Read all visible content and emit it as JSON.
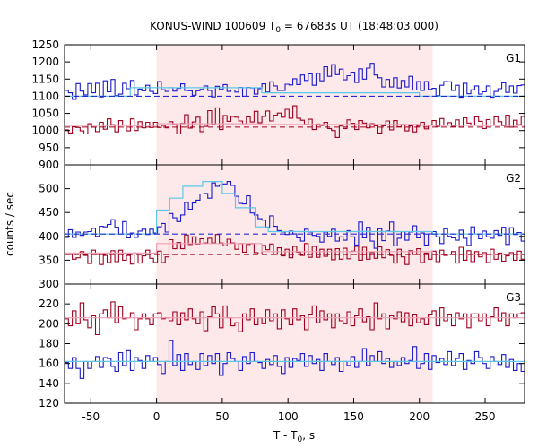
{
  "chart_data": {
    "type": "line",
    "title": {
      "prefix": "KONUS-WIND 100609 T",
      "sub": "0",
      "suffix": " = 67683s UT (18:48:03.000)"
    },
    "xlabel": {
      "prefix": "T - T",
      "sub": "0",
      "suffix": ", s"
    },
    "ylabel": "counts / sec",
    "xlim": [
      -70,
      280
    ],
    "xticks": [
      -50,
      0,
      50,
      100,
      150,
      200,
      250
    ],
    "grid": false,
    "shaded_interval": {
      "start": 0,
      "end": 210,
      "color": "#fde8ea"
    },
    "colors": {
      "blue": "#1a1acc",
      "red": "#a0001e",
      "light_blue": "#5bc8e8",
      "pink": "#f0a0b4",
      "dashed_blue": "#2a2ad0",
      "dashed_red": "#a0001e"
    },
    "panels": [
      {
        "label": "G1",
        "ylim": [
          900,
          1250
        ],
        "yticks": [
          900,
          950,
          1000,
          1050,
          1100,
          1150,
          1200,
          1250
        ],
        "series": [
          {
            "kind": "hist",
            "color": "blue",
            "bin": 2.944,
            "values": [
              1117,
              1110,
              1091,
              1137,
              1115,
              1104,
              1137,
              1110,
              1138,
              1098,
              1145,
              1113,
              1149,
              1102,
              1106,
              1138,
              1122,
              1146,
              1104,
              1121,
              1116,
              1132,
              1114,
              1108,
              1143,
              1119,
              1114,
              1125,
              1115,
              1123,
              1136,
              1117,
              1116,
              1103,
              1116,
              1120,
              1130,
              1117,
              1098,
              1129,
              1120,
              1134,
              1114,
              1118,
              1112,
              1126,
              1100,
              1126,
              1124,
              1106,
              1122,
              1136,
              1112,
              1142,
              1130,
              1117,
              1117,
              1135,
              1133,
              1151,
              1134,
              1162,
              1146,
              1165,
              1132,
              1167,
              1145,
              1186,
              1158,
              1192,
              1163,
              1179,
              1148,
              1160,
              1170,
              1140,
              1180,
              1150,
              1182,
              1196,
              1162,
              1154,
              1127,
              1149,
              1127,
              1154,
              1124,
              1146,
              1127,
              1158,
              1118,
              1143,
              1117,
              1143,
              1120,
              1123,
              1102,
              1132,
              1143,
              1142,
              1117,
              1132,
              1097,
              1138,
              1107,
              1119,
              1130,
              1106,
              1113,
              1130,
              1097,
              1114,
              1122,
              1139,
              1111,
              1130,
              1109,
              1131,
              1133,
              1119
            ]
          },
          {
            "kind": "hist",
            "color": "red",
            "bin": 2.944,
            "values": [
              1002,
              993,
              1011,
              1009,
              999,
              990,
              1020,
              1010,
              997,
              1024,
              1004,
              1034,
              1017,
              996,
              1029,
              1015,
              999,
              1034,
              1000,
              1026,
              1008,
              1024,
              1009,
              1024,
              1009,
              1015,
              1008,
              1026,
              1017,
              990,
              1021,
              1046,
              1007,
              1025,
              1039,
              997,
              1012,
              1058,
              1018,
              1066,
              1003,
              1044,
              1027,
              1041,
              1039,
              1028,
              1020,
              1040,
              1025,
              1056,
              1023,
              1041,
              1057,
              1028,
              1045,
              1051,
              1039,
              1062,
              1036,
              1072,
              1036,
              1030,
              1018,
              1033,
              1003,
              1019,
              1015,
              1024,
              1006,
              1000,
              980,
              1013,
              1006,
              1031,
              1021,
              1003,
              1029,
              1022,
              1008,
              1020,
              1014,
              993,
              1014,
              1028,
              1002,
              1029,
              1011,
              1018,
              999,
              1014,
              996,
              1013,
              1024,
              1005,
              1016,
              1029,
              1012,
              1035,
              1015,
              1023,
              1012,
              1031,
              1010,
              1037,
              1022,
              1015,
              1040,
              1027,
              1006,
              1032,
              1016,
              1040,
              1026,
              1014,
              1045,
              1010,
              1030,
              1017,
              1041,
              1023
            ]
          },
          {
            "kind": "step",
            "color": "light_blue",
            "x": [
              -70,
              -20,
              80,
              200,
              280
            ],
            "y": [
              1100,
              1125,
              1110,
              1100
            ]
          },
          {
            "kind": "step",
            "color": "pink",
            "x": [
              -70,
              0,
              80,
              200,
              280
            ],
            "y": [
              1015,
              1020,
              1018,
              1015
            ]
          },
          {
            "kind": "dashed",
            "color": "dashed_blue",
            "y": 1100
          },
          {
            "kind": "dashed",
            "color": "dashed_red",
            "y": 1010
          }
        ]
      },
      {
        "label": "G2",
        "ylim": [
          300,
          550
        ],
        "yticks": [
          300,
          350,
          400,
          450,
          500
        ],
        "series": [
          {
            "kind": "hist",
            "color": "blue",
            "bin": 2.944,
            "values": [
              398,
              414,
              398,
              409,
              402,
              409,
              410,
              417,
              400,
              421,
              420,
              425,
              435,
              419,
              405,
              431,
              397,
              407,
              398,
              411,
              415,
              404,
              415,
              407,
              420,
              427,
              409,
              448,
              439,
              431,
              445,
              471,
              457,
              470,
              476,
              489,
              490,
              480,
              512,
              505,
              508,
              510,
              515,
              507,
              484,
              469,
              468,
              485,
              449,
              445,
              437,
              434,
              418,
              443,
              421,
              412,
              409,
              404,
              411,
              405,
              397,
              390,
              415,
              409,
              402,
              400,
              388,
              409,
              400,
              415,
              390,
              399,
              392,
              412,
              399,
              382,
              430,
              397,
              419,
              390,
              375,
              416,
              391,
              411,
              430,
              380,
              396,
              410,
              392,
              409,
              422,
              397,
              407,
              382,
              405,
              410,
              399,
              385,
              416,
              400,
              397,
              392,
              413,
              396,
              381,
              420,
              405,
              395,
              411,
              399,
              396,
              412,
              402,
              419,
              383,
              418,
              404,
              408,
              390,
              417
            ]
          },
          {
            "kind": "hist",
            "color": "red",
            "bin": 2.944,
            "values": [
              363,
              362,
              352,
              355,
              368,
              360,
              343,
              371,
              362,
              341,
              360,
              345,
              370,
              347,
              371,
              350,
              360,
              342,
              365,
              344,
              359,
              371,
              354,
              345,
              369,
              345,
              357,
              393,
              374,
              387,
              374,
              403,
              383,
              399,
              384,
              395,
              386,
              396,
              386,
              404,
              386,
              380,
              394,
              386,
              373,
              385,
              367,
              383,
              385,
              366,
              363,
              381,
              372,
              384,
              362,
              376,
              359,
              373,
              355,
              379,
              367,
              360,
              385,
              356,
              379,
              356,
              373,
              358,
              373,
              351,
              374,
              352,
              375,
              353,
              369,
              379,
              350,
              377,
              352,
              366,
              354,
              378,
              355,
              372,
              360,
              344,
              373,
              357,
              341,
              370,
              362,
              374,
              345,
              365,
              352,
              369,
              347,
              371,
              360,
              363,
              368,
              344,
              377,
              350,
              370,
              347,
              368,
              357,
              366,
              345,
              373,
              352,
              365,
              348,
              359,
              366,
              350,
              369,
              352,
              360
            ]
          },
          {
            "kind": "step",
            "color": "light_blue",
            "x": [
              -70,
              0,
              10,
              20,
              35,
              50,
              60,
              75,
              85,
              210,
              280
            ],
            "y": [
              405,
              455,
              480,
              505,
              515,
              490,
              460,
              420,
              410,
              405
            ]
          },
          {
            "kind": "step",
            "color": "pink",
            "x": [
              -70,
              0,
              80,
              210,
              280
            ],
            "y": [
              365,
              385,
              368,
              362
            ]
          },
          {
            "kind": "dashed",
            "color": "dashed_blue",
            "y": 405
          },
          {
            "kind": "dashed",
            "color": "dashed_red",
            "y": 362
          }
        ]
      },
      {
        "label": "G3",
        "ylim": [
          120,
          240
        ],
        "yticks": [
          120,
          140,
          160,
          180,
          200,
          220
        ],
        "series": [
          {
            "kind": "hist",
            "color": "red",
            "bin": 2.944,
            "values": [
              205,
              198,
              213,
              200,
              221,
              204,
              196,
              208,
              189,
              210,
              214,
              206,
              222,
              201,
              217,
              205,
              206,
              211,
              194,
              205,
              210,
              205,
              199,
              210,
              211,
              205,
              206,
              203,
              212,
              199,
              211,
              204,
              215,
              205,
              200,
              212,
              193,
              207,
              217,
              210,
              196,
              218,
              206,
              198,
              201,
              192,
              210,
              204,
              215,
              199,
              206,
              200,
              214,
              203,
              210,
              195,
              214,
              205,
              199,
              215,
              204,
              208,
              194,
              209,
              218,
              201,
              213,
              204,
              210,
              196,
              210,
              203,
              200,
              212,
              198,
              208,
              215,
              202,
              207,
              194,
              221,
              205,
              210,
              195,
              208,
              205,
              212,
              202,
              211,
              198,
              209,
              201,
              205,
              199,
              209,
              213,
              198,
              216,
              203,
              209,
              198,
              211,
              205,
              210,
              196,
              210,
              210,
              203,
              210,
              198,
              207,
              216,
              203,
              211,
              198,
              210,
              206,
              210,
              211,
              215
            ]
          },
          {
            "kind": "hist",
            "color": "blue",
            "bin": 2.944,
            "values": [
              161,
              155,
              166,
              155,
              145,
              162,
              155,
              162,
              167,
              156,
              166,
              165,
              157,
              152,
              171,
              158,
              173,
              153,
              166,
              163,
              155,
              168,
              162,
              166,
              159,
              150,
              162,
              183,
              158,
              169,
              153,
              170,
              159,
              162,
              154,
              170,
              158,
              168,
              160,
              170,
              148,
              160,
              171,
              165,
              162,
              153,
              167,
              160,
              171,
              162,
              161,
              155,
              164,
              159,
              168,
              157,
              150,
              166,
              156,
              165,
              163,
              170,
              157,
              168,
              160,
              164,
              153,
              170,
              162,
              159,
              166,
              152,
              162,
              158,
              167,
              156,
              162,
              175,
              158,
              168,
              162,
              172,
              160,
              165,
              156,
              162,
              158,
              166,
              160,
              163,
              177,
              155,
              160,
              170,
              154,
              168,
              161,
              165,
              159,
              172,
              158,
              165,
              170,
              154,
              163,
              160,
              172,
              166,
              160,
              155,
              167,
              162,
              159,
              169,
              156,
              164,
              153,
              160,
              152,
              163
            ]
          },
          {
            "kind": "step",
            "color": "pink",
            "x": [
              -70,
              280
            ],
            "y": [
              206
            ]
          },
          {
            "kind": "step",
            "color": "light_blue",
            "x": [
              -70,
              280
            ],
            "y": [
              162
            ]
          }
        ]
      }
    ]
  }
}
